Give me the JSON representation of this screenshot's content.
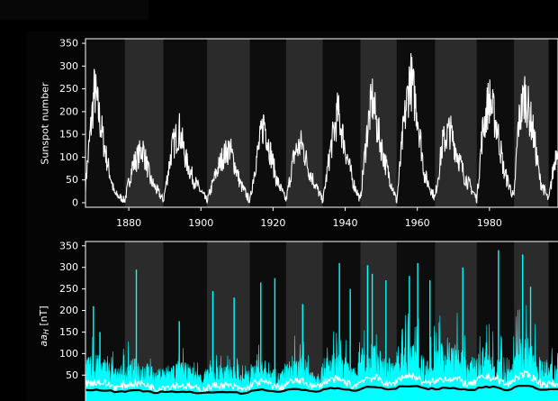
{
  "colors": {
    "background": "#000000",
    "band_dark": "#0d0d0d",
    "band_light": "#2b2b2b",
    "sunspot_line": "#ffffff",
    "aa_raw": "#00ffff",
    "aa_smooth": "#ffffff",
    "aa_mean": "#000000"
  },
  "chart_data": [
    {
      "type": "line",
      "title": "",
      "xlabel": "",
      "ylabel": "Sunspot number",
      "xlim": [
        1868,
        1999
      ],
      "ylim": [
        -10,
        360
      ],
      "xticks": [
        1880,
        1900,
        1920,
        1940,
        1960,
        1980
      ],
      "yticks": [
        0,
        50,
        100,
        150,
        200,
        250,
        300,
        350
      ],
      "grid": false,
      "legend": "none",
      "cycle_minima": [
        1867.2,
        1878.9,
        1889.6,
        1901.7,
        1913.6,
        1923.6,
        1933.8,
        1944.2,
        1954.3,
        1964.9,
        1976.5,
        1986.8,
        1996.4
      ],
      "series": [
        {
          "x": [
            1868,
            1870.5,
            1872,
            1874,
            1876,
            1878.9,
            1881,
            1883.9,
            1886,
            1889.6,
            1892,
            1894,
            1896,
            1898,
            1901.7,
            1904,
            1906,
            1908,
            1911,
            1913.6,
            1915,
            1917.5,
            1919,
            1921,
            1923.6,
            1926,
            1928,
            1930,
            1933.8,
            1936,
            1938,
            1940,
            1942,
            1944.2,
            1946,
            1947.5,
            1949,
            1951,
            1954.3,
            1956,
            1958,
            1960,
            1962,
            1964.9,
            1967,
            1969,
            1971,
            1973,
            1976.5,
            1978,
            1979.9,
            1982,
            1984,
            1986.8,
            1988,
            1989.8,
            1992,
            1994,
            1996.4,
            1999
          ],
          "y": [
            40,
            250,
            180,
            90,
            20,
            5,
            80,
            120,
            50,
            5,
            120,
            160,
            90,
            50,
            3,
            60,
            100,
            120,
            40,
            3,
            80,
            180,
            120,
            50,
            5,
            110,
            130,
            70,
            3,
            120,
            200,
            120,
            50,
            5,
            150,
            230,
            160,
            90,
            3,
            150,
            280,
            200,
            60,
            10,
            130,
            160,
            110,
            60,
            8,
            150,
            230,
            170,
            70,
            10,
            170,
            240,
            160,
            50,
            5,
            140
          ]
        }
      ]
    },
    {
      "type": "line",
      "title": "",
      "xlabel": "",
      "ylabel": "aaH [nT]",
      "xlim": [
        1868,
        1999
      ],
      "ylim": [
        -10,
        360
      ],
      "yticks": [
        50,
        100,
        150,
        200,
        250,
        300,
        350
      ],
      "grid": false,
      "legend": "none",
      "series": [
        {
          "style": "daily",
          "x": [
            1870.2,
            1872.0,
            1882.1,
            1894.0,
            1903.3,
            1909.2,
            1916.6,
            1920.5,
            1928.2,
            1938.4,
            1941.4,
            1946.2,
            1947.5,
            1951.3,
            1957.8,
            1960.1,
            1963.5,
            1972.6,
            1982.5,
            1989.2,
            1991.4
          ],
          "y": [
            210,
            150,
            295,
            175,
            245,
            230,
            265,
            275,
            215,
            310,
            250,
            305,
            285,
            270,
            280,
            310,
            270,
            300,
            340,
            330,
            255
          ],
          "baseline": 20,
          "amplitude_per_cycle": [
            105,
            95,
            85,
            75,
            90,
            95,
            110,
            135,
            150,
            150,
            125,
            160,
            165,
            175
          ]
        },
        {
          "style": "monthly",
          "level_per_cycle": [
            28,
            26,
            22,
            22,
            28,
            30,
            33,
            37,
            40,
            36,
            38,
            42,
            40,
            40
          ]
        },
        {
          "style": "annual",
          "level_per_cycle": [
            14,
            12,
            10,
            10,
            14,
            15,
            17,
            20,
            22,
            18,
            20,
            22,
            21,
            21
          ]
        }
      ]
    }
  ],
  "panel1": {
    "ylabel": "Sunspot number"
  },
  "panel2": {
    "ylabel_base": "aa",
    "ylabel_sub": "H",
    "ylabel_unit": " [nT]"
  }
}
